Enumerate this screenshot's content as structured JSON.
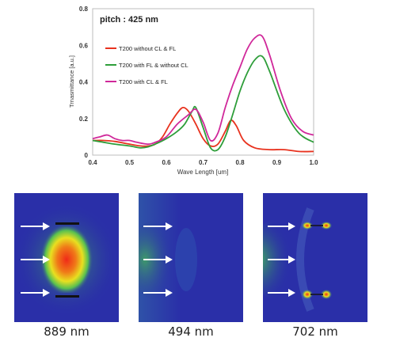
{
  "chart_data": {
    "type": "line",
    "annotation": "pitch : 425 nm",
    "xlabel": "Wave Length [um]",
    "ylabel": "Trnasmittance [a.u.]",
    "xlim": [
      0.4,
      1.0
    ],
    "ylim": [
      0,
      0.8
    ],
    "xticks": [
      "0.4",
      "0.5",
      "0.6",
      "0.7",
      "0.8",
      "0.9",
      "1.0"
    ],
    "yticks": [
      "0",
      "0.2",
      "0.4",
      "0.6",
      "0.8"
    ],
    "grid": false,
    "legend_position": "upper-left",
    "series": [
      {
        "name": "T200  without CL & FL",
        "color": "#e8321e",
        "x": [
          0.4,
          0.43,
          0.46,
          0.5,
          0.53,
          0.55,
          0.57,
          0.59,
          0.61,
          0.63,
          0.645,
          0.66,
          0.68,
          0.7,
          0.72,
          0.74,
          0.76,
          0.775,
          0.79,
          0.81,
          0.84,
          0.88,
          0.92,
          0.96,
          1.0
        ],
        "values": [
          0.08,
          0.08,
          0.075,
          0.06,
          0.05,
          0.05,
          0.06,
          0.1,
          0.17,
          0.23,
          0.26,
          0.24,
          0.17,
          0.09,
          0.05,
          0.06,
          0.13,
          0.19,
          0.16,
          0.08,
          0.04,
          0.03,
          0.03,
          0.02,
          0.02
        ]
      },
      {
        "name": "T200  with FL & without CL",
        "color": "#2e9e3a",
        "x": [
          0.4,
          0.43,
          0.46,
          0.5,
          0.53,
          0.55,
          0.57,
          0.6,
          0.63,
          0.65,
          0.67,
          0.68,
          0.7,
          0.72,
          0.74,
          0.76,
          0.78,
          0.8,
          0.82,
          0.84,
          0.86,
          0.88,
          0.92,
          0.96,
          1.0
        ],
        "values": [
          0.08,
          0.07,
          0.06,
          0.05,
          0.04,
          0.045,
          0.06,
          0.09,
          0.13,
          0.17,
          0.24,
          0.26,
          0.15,
          0.04,
          0.03,
          0.1,
          0.22,
          0.35,
          0.45,
          0.52,
          0.54,
          0.46,
          0.25,
          0.12,
          0.07
        ]
      },
      {
        "name": "T200  with CL & FL",
        "color": "#d0289a",
        "x": [
          0.4,
          0.42,
          0.44,
          0.46,
          0.48,
          0.5,
          0.52,
          0.55,
          0.57,
          0.6,
          0.63,
          0.66,
          0.68,
          0.7,
          0.72,
          0.74,
          0.76,
          0.78,
          0.8,
          0.82,
          0.84,
          0.86,
          0.88,
          0.91,
          0.94,
          0.97,
          1.0
        ],
        "values": [
          0.09,
          0.1,
          0.11,
          0.09,
          0.08,
          0.08,
          0.07,
          0.06,
          0.07,
          0.1,
          0.17,
          0.22,
          0.25,
          0.18,
          0.08,
          0.12,
          0.26,
          0.38,
          0.48,
          0.58,
          0.64,
          0.65,
          0.55,
          0.35,
          0.2,
          0.13,
          0.11
        ]
      }
    ]
  },
  "field_panels": [
    {
      "caption": "889 nm",
      "pattern": "strong-central-confinement"
    },
    {
      "caption": "494 nm",
      "pattern": "weak-field"
    },
    {
      "caption": "702 nm",
      "pattern": "edge-hotspots"
    }
  ],
  "colors": {
    "field_low": "#2a2fa8",
    "field_mid": "#3fae52",
    "field_high": "#f03020",
    "arrow": "#ffffff"
  }
}
